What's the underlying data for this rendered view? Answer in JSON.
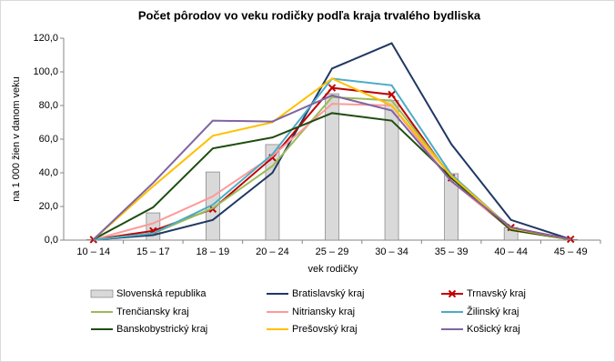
{
  "chart_data": {
    "type": "combo",
    "title": "Počet pôrodov vo veku rodičky podľa kraja trvalého bydliska",
    "x_label": "vek rodičky",
    "y_label": "na 1 000 žien v danom veku",
    "categories": [
      "10 – 14",
      "15 – 17",
      "18 – 19",
      "20 – 24",
      "25 – 29",
      "30 – 34",
      "35 – 39",
      "40 – 44",
      "45 – 49"
    ],
    "ylim": [
      0,
      120
    ],
    "yticks": [
      {
        "value": 0,
        "label": "0,0"
      },
      {
        "value": 20,
        "label": "20,0"
      },
      {
        "value": 40,
        "label": "40,0"
      },
      {
        "value": 60,
        "label": "60,0"
      },
      {
        "value": 80,
        "label": "80,0"
      },
      {
        "value": 100,
        "label": "100,0"
      },
      {
        "value": 120,
        "label": "120,0"
      }
    ],
    "series": [
      {
        "name": "Slovenská republika",
        "type": "bar",
        "color": "#d9d9d9",
        "values": [
          0.3,
          16.2,
          40.5,
          56.8,
          87,
          83,
          39.5,
          7.5,
          0.4
        ]
      },
      {
        "name": "Bratislavský kraj",
        "type": "line",
        "color": "#1f3864",
        "values": [
          0.2,
          3,
          12,
          40,
          102,
          117,
          57,
          12,
          0.5
        ]
      },
      {
        "name": "Trnavský kraj",
        "type": "line",
        "color": "#c00000",
        "marker": "x",
        "values": [
          0.3,
          5.5,
          18.5,
          49,
          90.5,
          86.5,
          37,
          7.5,
          0.5
        ]
      },
      {
        "name": "Trenčiansky kraj",
        "type": "line",
        "color": "#9bbb59",
        "values": [
          0.2,
          4,
          19,
          44,
          85,
          83,
          38,
          6.5,
          0.4
        ]
      },
      {
        "name": "Nitriansky kraj",
        "type": "line",
        "color": "#ff9999",
        "values": [
          0.3,
          10,
          26,
          50,
          81,
          80,
          35,
          6,
          0.4
        ]
      },
      {
        "name": "Žilinský kraj",
        "type": "line",
        "color": "#4bacc6",
        "values": [
          0.2,
          4,
          21,
          51,
          96,
          92,
          39,
          7,
          0.4
        ]
      },
      {
        "name": "Banskobystrický kraj",
        "type": "line",
        "color": "#1e4d0e",
        "values": [
          0.5,
          19.5,
          54.5,
          61,
          75.5,
          71,
          37,
          6,
          0.4
        ]
      },
      {
        "name": "Prešovský kraj",
        "type": "line",
        "color": "#ffc000",
        "values": [
          0.4,
          32,
          62,
          70,
          96,
          80,
          38,
          7,
          0.4
        ]
      },
      {
        "name": "Košický kraj",
        "type": "line",
        "color": "#8064a2",
        "values": [
          0.4,
          34,
          71,
          70.5,
          86,
          77,
          35,
          7.5,
          0.5
        ]
      }
    ]
  }
}
